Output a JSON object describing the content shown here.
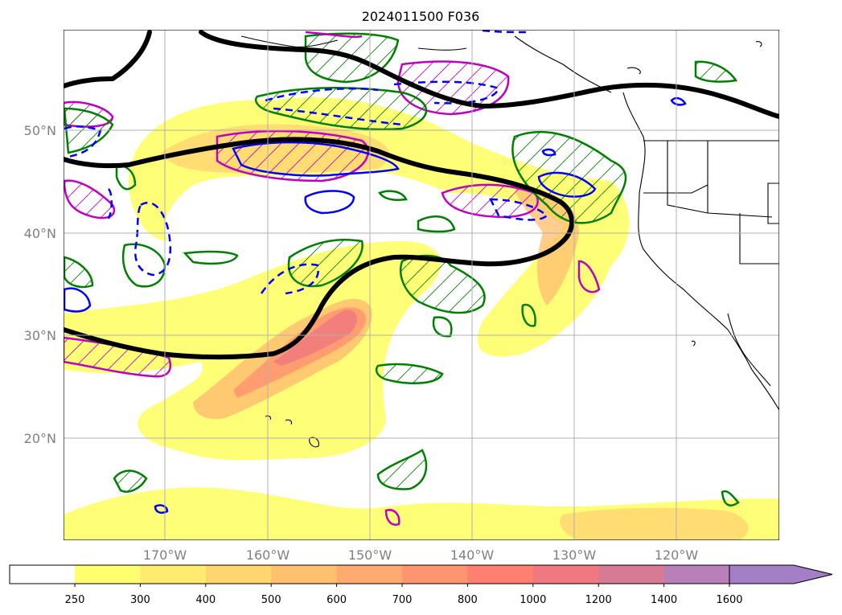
{
  "title": "2024011500 F036",
  "lat_labels": [
    "50°N",
    "40°N",
    "30°N",
    "20°N"
  ],
  "lon_labels": [
    "170°W",
    "160°W",
    "150°W",
    "140°W",
    "130°W",
    "120°W"
  ],
  "colorbar": {
    "ticks": [
      "250",
      "300",
      "400",
      "500",
      "600",
      "700",
      "800",
      "1000",
      "1200",
      "1400",
      "1600"
    ],
    "colors": [
      "#ffff70",
      "#ffeb70",
      "#ffd570",
      "#ffc070",
      "#ffaa70",
      "#ff9570",
      "#ff8070",
      "#f07880",
      "#d67a95",
      "#b87fb8",
      "#a37fc8"
    ],
    "under_color": "#ffffff",
    "extend": "max"
  },
  "map": {
    "lat_range": [
      10,
      60
    ],
    "lon_range": [
      -180,
      -110
    ],
    "gridlines": true,
    "colors": {
      "trough_ridge_line": "#000000",
      "positive_contour": "#008000",
      "negative_contour": "#0000ff",
      "magenta_contour": "#c000c0",
      "coastline": "#000000",
      "grid": "#b0b0b0"
    }
  }
}
